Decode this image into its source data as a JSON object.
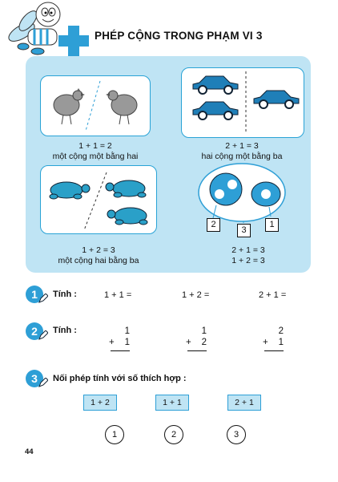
{
  "title": "PHÉP CỘNG TRONG PHẠM VI 3",
  "panel": {
    "hens": {
      "expr": "1 + 1 = 2",
      "text": "một cộng một bằng hai"
    },
    "cars": {
      "expr": "2 + 1 = 3",
      "text": "hai cộng một bằng ba"
    },
    "turtles": {
      "expr": "1 + 2 = 3",
      "text": "một cộng hai bằng ba"
    },
    "dots": {
      "expr1": "2 + 1 = 3",
      "expr2": "1 + 2 = 3",
      "labels": [
        "2",
        "3",
        "1"
      ]
    }
  },
  "exercise1": {
    "num": "1",
    "label": "Tính :",
    "items": [
      "1 + 1 =",
      "1 + 2 =",
      "2 + 1 ="
    ]
  },
  "exercise2": {
    "num": "2",
    "label": "Tính :",
    "items": [
      {
        "top": "1",
        "op": "+",
        "bottom": "1"
      },
      {
        "top": "1",
        "op": "+",
        "bottom": "2"
      },
      {
        "top": "2",
        "op": "+",
        "bottom": "1"
      }
    ]
  },
  "exercise3": {
    "num": "3",
    "label": "Nối phép tính với số thích hợp :",
    "boxes": [
      "1 + 2",
      "1 + 1",
      "2 + 1"
    ],
    "numbers": [
      "1",
      "2",
      "3"
    ]
  },
  "page_number": "44",
  "colors": {
    "accent": "#2e9fd6",
    "panel": "#bfe4f4",
    "car": "#1f7fb8",
    "turtle": "#2aa0c8"
  }
}
